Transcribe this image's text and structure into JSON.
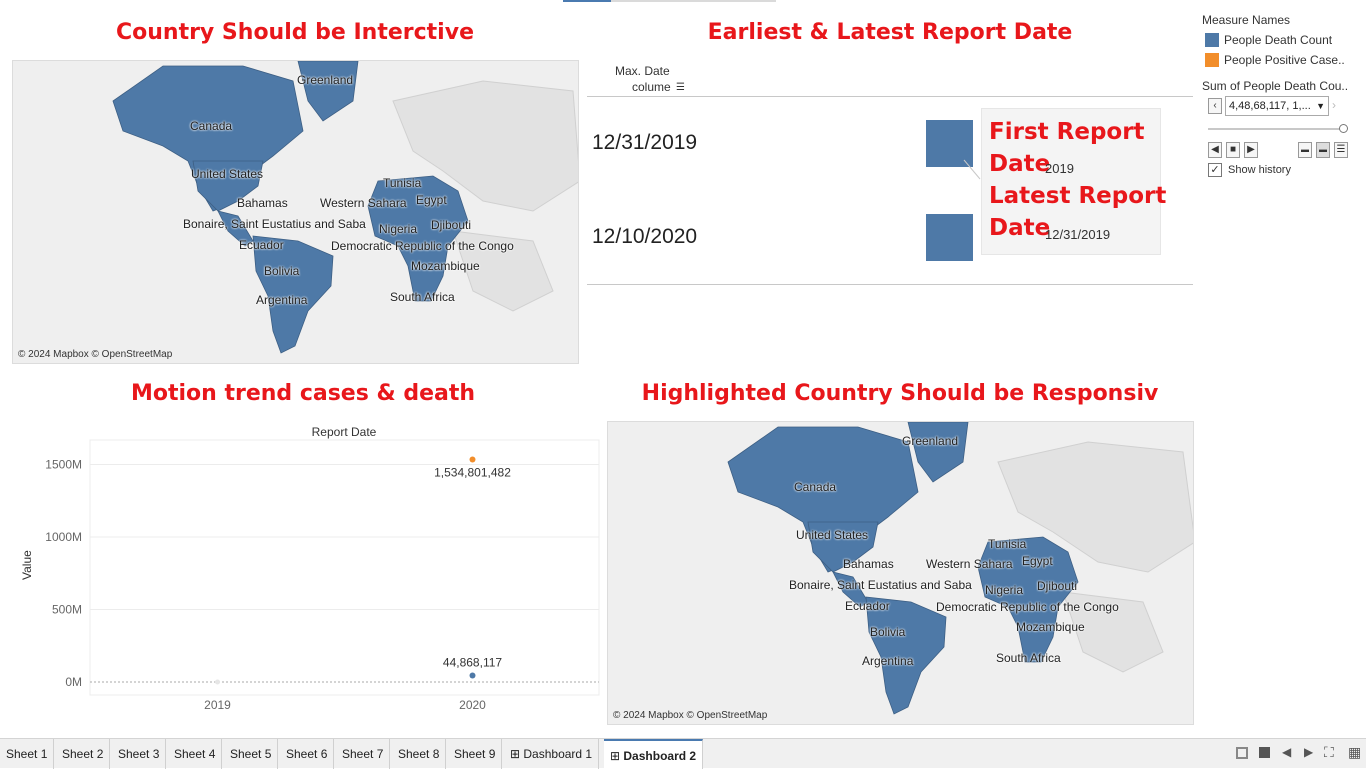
{
  "titles": {
    "map1": "Country Should be Interctive",
    "dates": "Earliest & Latest Report Date",
    "motion": "Motion trend cases & death",
    "map2": "Highlighted Country Should be Responsiv"
  },
  "map": {
    "attribution": "© 2024 Mapbox © OpenStreetMap",
    "labels": [
      "Greenland",
      "Canada",
      "United States",
      "Bahamas",
      "Bonaire, Saint Eustatius and Saba",
      "Ecuador",
      "Bolivia",
      "Argentina",
      "Tunisia",
      "Egypt",
      "Western Sahara",
      "Djibouti",
      "Nigeria",
      "Democratic Republic of the Congo",
      "Mozambique",
      "South Africa"
    ],
    "land_color": "#4e79a7",
    "base_color": "#efefef"
  },
  "date_table": {
    "header_line1": "Max. Date",
    "header_line2": "colume",
    "rows": [
      "12/31/2019",
      "12/10/2020"
    ],
    "square_color": "#4e79a7"
  },
  "tooltip": {
    "first_label_1": "First Report",
    "first_label_2": "Date",
    "first_value": "2019",
    "latest_label_1": "Latest Report",
    "latest_label_2": "Date",
    "latest_value": "12/31/2019"
  },
  "legend": {
    "title": "Measure Names",
    "items": [
      {
        "label": "People Death Count",
        "color": "#4e79a7"
      },
      {
        "label": "People Positive Case..",
        "color": "#f28e2b"
      }
    ],
    "filter_title": "Sum of People Death Cou..",
    "filter_value": "4,48,68,117, 1,...",
    "show_history": "Show history"
  },
  "chart_data": {
    "type": "scatter",
    "title": "Report Date",
    "xlabel": "",
    "ylabel": "Value",
    "categories": [
      "2019",
      "2020"
    ],
    "ylim": [
      0,
      1600000000
    ],
    "yticks": [
      "0M",
      "500M",
      "1000M",
      "1500M"
    ],
    "ytick_values": [
      0,
      500000000,
      1000000000,
      1500000000
    ],
    "series": [
      {
        "name": "People Positive Case..",
        "color": "#f28e2b",
        "points": [
          {
            "x": "2020",
            "y": 1534801482,
            "label": "1,534,801,482"
          }
        ]
      },
      {
        "name": "People Death Count",
        "color": "#4e79a7",
        "points": [
          {
            "x": "2020",
            "y": 44868117,
            "label": "44,868,117"
          }
        ]
      }
    ]
  },
  "tabs": [
    "Sheet 1",
    "Sheet 2",
    "Sheet 3",
    "Sheet 4",
    "Sheet 5",
    "Sheet 6",
    "Sheet 7",
    "Sheet 8",
    "Sheet 9",
    "Dashboard 1",
    "Dashboard 2"
  ],
  "active_tab": "Dashboard 2"
}
